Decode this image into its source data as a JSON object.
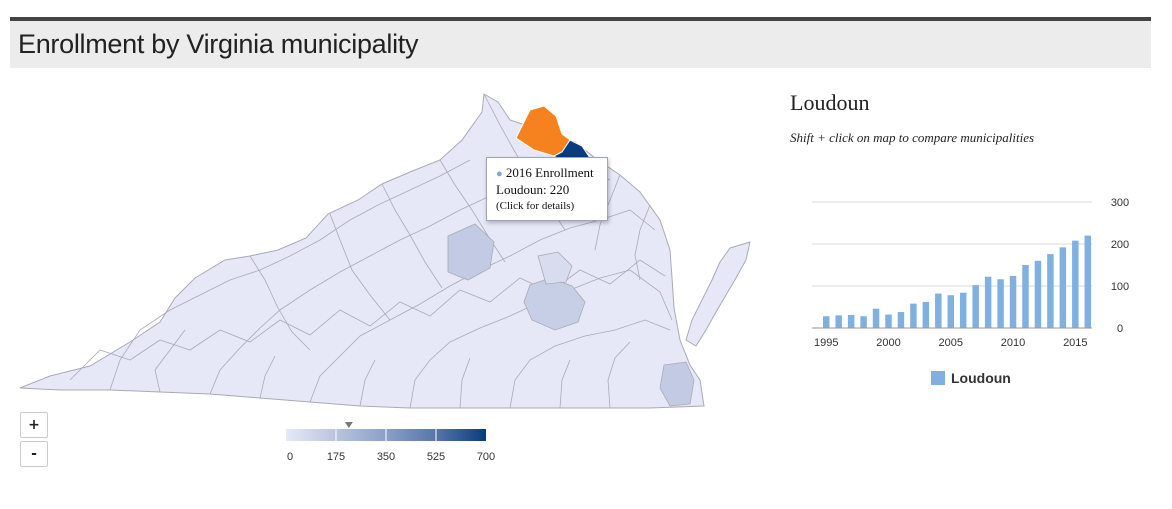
{
  "page": {
    "title": "Enrollment by Virginia municipality"
  },
  "tooltip": {
    "series_label": "2016 Enrollment",
    "value_line": "Loudoun: 220",
    "note": "(Click for details)"
  },
  "zoom": {
    "in_label": "+",
    "out_label": "-"
  },
  "color_scale": {
    "ticks": [
      "0",
      "175",
      "350",
      "525",
      "700"
    ],
    "colors": [
      "#e6e8f7",
      "#b9c4de",
      "#8aa0c8",
      "#5775aa",
      "#0b3b7e"
    ],
    "marker_value": 220
  },
  "selection": {
    "name": "Loudoun",
    "hint": "Shift + click on map to compare municipalities",
    "highlight_color": "#f5821f"
  },
  "chart_data": {
    "type": "bar",
    "title": "",
    "series": [
      {
        "name": "Loudoun",
        "color": "#7fb0e0",
        "values": [
          28,
          30,
          31,
          28,
          46,
          32,
          38,
          58,
          62,
          82,
          78,
          84,
          102,
          122,
          116,
          124,
          150,
          160,
          176,
          192,
          208,
          220
        ]
      }
    ],
    "x": [
      1995,
      1996,
      1997,
      1998,
      1999,
      2000,
      2001,
      2002,
      2003,
      2004,
      2005,
      2006,
      2007,
      2008,
      2009,
      2010,
      2011,
      2012,
      2013,
      2014,
      2015,
      2016
    ],
    "x_ticks": [
      "1995",
      "2000",
      "2005",
      "2010",
      "2015"
    ],
    "y_ticks": [
      "0",
      "100",
      "200",
      "300"
    ],
    "ylim": [
      0,
      300
    ],
    "grid": true,
    "legend": "bottom"
  }
}
